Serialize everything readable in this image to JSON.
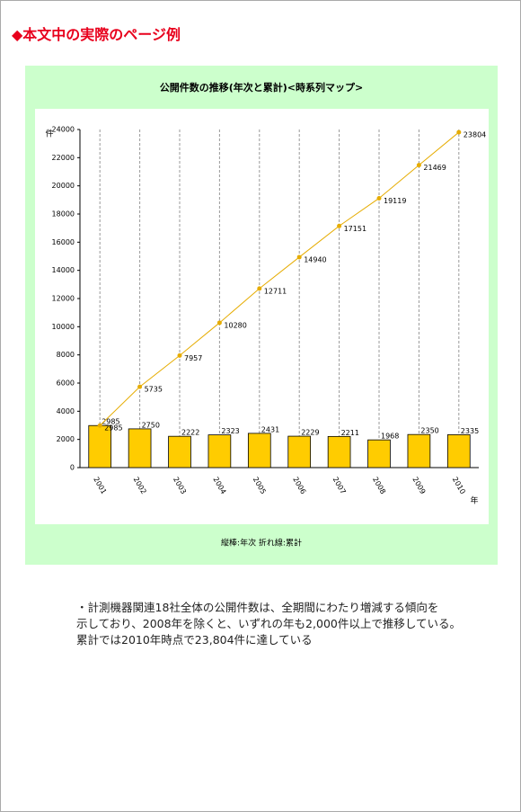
{
  "header": {
    "title": "◆本文中の実際のページ例"
  },
  "chart_data": {
    "type": "combo",
    "title": "公開件数の推移(年次と累計)<時系列マップ>",
    "categories": [
      "2001",
      "2002",
      "2003",
      "2004",
      "2005",
      "2006",
      "2007",
      "2008",
      "2009",
      "2010"
    ],
    "series": [
      {
        "type": "bar",
        "color": "#ffcc00",
        "values": [
          2985,
          2750,
          2222,
          2323,
          2431,
          2229,
          2211,
          1968,
          2350,
          2335
        ]
      },
      {
        "type": "line",
        "color": "#e6ac00",
        "values": [
          2985,
          5735,
          7957,
          10280,
          12711,
          14940,
          17151,
          19119,
          21469,
          23804
        ]
      }
    ],
    "ylim": [
      0,
      24000
    ],
    "yticks": [
      0,
      2000,
      4000,
      6000,
      8000,
      10000,
      12000,
      14000,
      16000,
      18000,
      20000,
      22000,
      24000
    ],
    "y_label": "件",
    "x_label": "年",
    "grid": true,
    "note": "縦棒:年次 折れ線:累計"
  },
  "paragraph": [
    "・計測機器関連18社全体の公開件数は、全期間にわたり増減する傾向を",
    "示しており、2008年を除くと、いずれの年も2,000件以上で推移している。",
    "累計では2010年時点で23,804件に達している"
  ]
}
